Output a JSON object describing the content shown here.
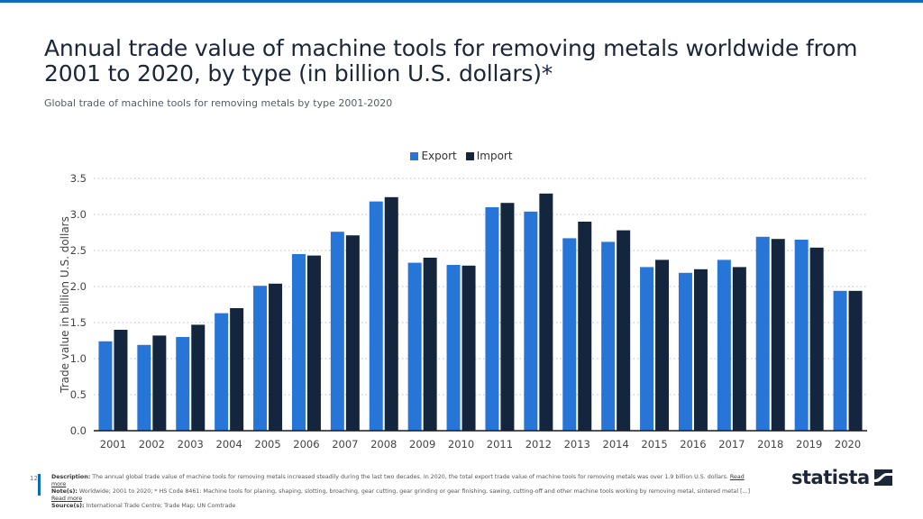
{
  "page": {
    "title": "Annual trade value of machine tools for removing metals worldwide from 2001 to 2020, by type (in billion U.S. dollars)*",
    "subtitle": "Global trade of machine tools for removing metals by type 2001-2020",
    "page_number": "12"
  },
  "legend": {
    "items": [
      {
        "label": "Export",
        "color": "#2875d8"
      },
      {
        "label": "Import",
        "color": "#14263d"
      }
    ]
  },
  "footer": {
    "description_label": "Description:",
    "description_text": "The annual global trade value of machine tools for removing metals increased steadily during the last two decades. In 2020, the total export trade value of machine tools for removing metals was over 1.9 billion U.S. dollars.",
    "description_link": "Read more",
    "notes_label": "Note(s):",
    "notes_text": "Worldwide; 2001 to 2020; * HS Code 8461: Machine tools for planing, shaping, slotting, broaching, gear cutting, gear grinding or gear finishing, sawing, cutting-off and other machine tools working by removing metal, sintered metal [...]",
    "notes_link": "Read more",
    "source_label": "Source(s):",
    "source_text": "International Trade Centre; Trade Map; UN Comtrade"
  },
  "logo": {
    "text": "statista"
  },
  "chart_data": {
    "type": "bar",
    "title": "Annual trade value of machine tools for removing metals worldwide from 2001 to 2020, by type (in billion U.S. dollars)*",
    "xlabel": "",
    "ylabel": "Trade value in billion U.S. dollars",
    "ylim": [
      0,
      3.5
    ],
    "yticks": [
      "0.0",
      "0.5",
      "1.0",
      "1.5",
      "2.0",
      "2.5",
      "3.0",
      "3.5"
    ],
    "grid": true,
    "legend_position": "top-center",
    "categories": [
      "2001",
      "2002",
      "2003",
      "2004",
      "2005",
      "2006",
      "2007",
      "2008",
      "2009",
      "2010",
      "2011",
      "2012",
      "2013",
      "2014",
      "2015",
      "2016",
      "2017",
      "2018",
      "2019",
      "2020"
    ],
    "series": [
      {
        "name": "Export",
        "color": "#2875d8",
        "values": [
          1.24,
          1.19,
          1.3,
          1.63,
          2.01,
          2.45,
          2.76,
          3.18,
          2.33,
          2.3,
          3.1,
          3.04,
          2.67,
          2.62,
          2.27,
          2.19,
          2.37,
          2.69,
          2.65,
          1.94
        ]
      },
      {
        "name": "Import",
        "color": "#14263d",
        "values": [
          1.4,
          1.32,
          1.47,
          1.7,
          2.04,
          2.43,
          2.71,
          3.24,
          2.4,
          2.29,
          3.16,
          3.29,
          2.9,
          2.78,
          2.37,
          2.24,
          2.27,
          2.66,
          2.54,
          1.94
        ]
      }
    ]
  }
}
